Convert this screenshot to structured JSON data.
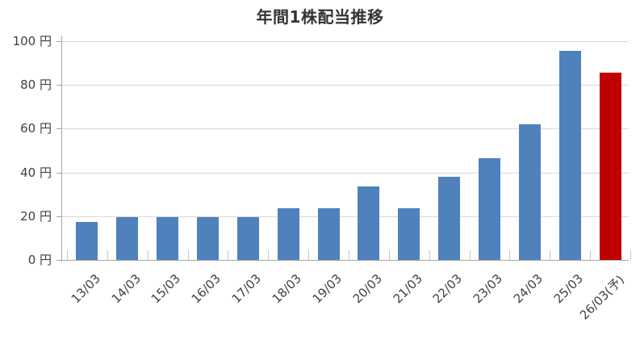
{
  "chart_data": {
    "type": "bar",
    "title": "年間1株配当推移",
    "unit": "円",
    "categories": [
      "13/03",
      "14/03",
      "15/03",
      "16/03",
      "17/03",
      "18/03",
      "19/03",
      "20/03",
      "21/03",
      "22/03",
      "23/03",
      "24/03",
      "25/03",
      "26/03(予)"
    ],
    "values": [
      17.5,
      19.5,
      19.5,
      19.5,
      19.5,
      23.5,
      23.5,
      33.5,
      23.5,
      38,
      46.5,
      62,
      95.5,
      85.5
    ],
    "forecast_index": 13,
    "forecast_category": "26/03(予)",
    "ylim": [
      0,
      100
    ],
    "yticks": [
      {
        "value": 0,
        "label": "0 円"
      },
      {
        "value": 20,
        "label": "20 円"
      },
      {
        "value": 40,
        "label": "40 円"
      },
      {
        "value": 60,
        "label": "60 円"
      },
      {
        "value": 80,
        "label": "80 円"
      },
      {
        "value": 100,
        "label": "100 円"
      }
    ],
    "grid": true,
    "legend": "none",
    "colors": {
      "bar": "#4F81BD",
      "forecast_bar": "#C00000",
      "grid": "#D9D9D9",
      "axis": "#A6A6A6",
      "category_tick": "#C8C8C8",
      "label_text": "#404040",
      "title_text": "#333333"
    }
  }
}
